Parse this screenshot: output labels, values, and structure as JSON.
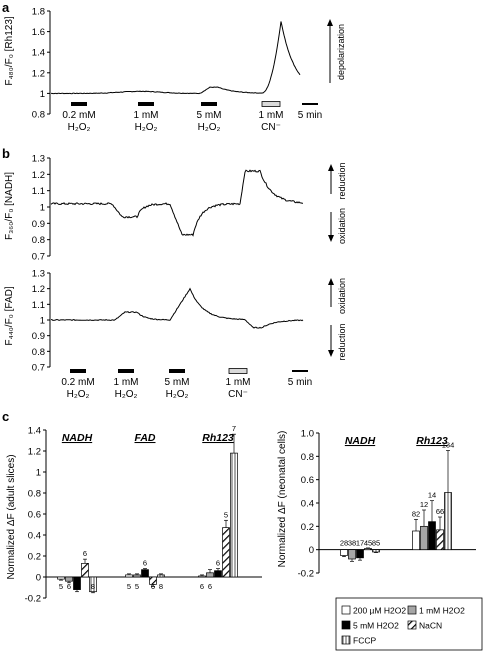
{
  "panel_labels": [
    "a",
    "b",
    "c"
  ],
  "panel_a": {
    "ylabel": "F₄₈₀/F₀ [Rh123]",
    "ylim": [
      0.8,
      1.8
    ],
    "yticks": [
      "0.8",
      "1",
      "1.2",
      "1.4",
      "1.6",
      "1.8"
    ],
    "arrow_label": "depolarization",
    "markers": [
      {
        "line1": "0.2 mM",
        "line2": "H₂O₂",
        "style": "black"
      },
      {
        "line1": "1 mM",
        "line2": "H₂O₂",
        "style": "black"
      },
      {
        "line1": "5 mM",
        "line2": "H₂O₂",
        "style": "black"
      },
      {
        "line1": "1 mM",
        "line2": "CN⁻",
        "style": "gray"
      }
    ],
    "scale_label": "5 min"
  },
  "panel_b_nadh": {
    "ylabel": "F₃₆₀/F₀ [NADH]",
    "ylim": [
      0.7,
      1.3
    ],
    "yticks": [
      "0.7",
      "0.8",
      "0.9",
      "1",
      "1.1",
      "1.2",
      "1.3"
    ],
    "arrow_up": "reduction",
    "arrow_down": "oxidation"
  },
  "panel_b_fad": {
    "ylabel": "F₄₄₀/F₀ [FAD]",
    "ylim": [
      0.7,
      1.3
    ],
    "yticks": [
      "0.7",
      "0.8",
      "0.9",
      "1",
      "1.1",
      "1.2",
      "1.3"
    ],
    "arrow_up": "oxidation",
    "arrow_down": "reduction",
    "markers": [
      {
        "line1": "0.2 mM",
        "line2": "H₂O₂",
        "style": "black"
      },
      {
        "line1": "1 mM",
        "line2": "H₂O₂",
        "style": "black"
      },
      {
        "line1": "5 mM",
        "line2": "H₂O₂",
        "style": "black"
      },
      {
        "line1": "1 mM",
        "line2": "CN⁻",
        "style": "gray"
      }
    ],
    "scale_label": "5 min"
  },
  "chart_data": [
    {
      "type": "bar",
      "ylabel": "Normalized ΔF  (adult slices)",
      "ylim": [
        -0.2,
        1.4
      ],
      "yticks": [
        "-0.2",
        "0",
        "0.2",
        "0.4",
        "0.6",
        "0.8",
        "1",
        "1.2",
        "1.4"
      ],
      "groups": [
        "NADH",
        "FAD",
        "Rh123"
      ],
      "series_order": [
        "200 µM H2O2",
        "1 mM H2O2",
        "5 mM H2O2",
        "NaCN",
        "FCCP"
      ],
      "bars": [
        {
          "group": "NADH",
          "series": "200 µM H2O2",
          "value": -0.02,
          "err": 0.01,
          "n": "5"
        },
        {
          "group": "NADH",
          "series": "1 mM H2O2",
          "value": -0.04,
          "err": 0.015,
          "n": "6"
        },
        {
          "group": "NADH",
          "series": "5 mM H2O2",
          "value": -0.12,
          "err": 0.02,
          "n": "6"
        },
        {
          "group": "NADH",
          "series": "NaCN",
          "value": 0.13,
          "err": 0.04,
          "n": "6"
        },
        {
          "group": "NADH",
          "series": "FCCP",
          "value": -0.14,
          "err": 0.01,
          "n": "8"
        },
        {
          "group": "FAD",
          "series": "200 µM H2O2",
          "value": 0.02,
          "err": 0.01,
          "n": "5"
        },
        {
          "group": "FAD",
          "series": "1 mM H2O2",
          "value": 0.02,
          "err": 0.01,
          "n": "5"
        },
        {
          "group": "FAD",
          "series": "5 mM H2O2",
          "value": 0.07,
          "err": 0.01,
          "n": "6"
        },
        {
          "group": "FAD",
          "series": "NaCN",
          "value": -0.07,
          "err": 0.02,
          "n": "6"
        },
        {
          "group": "FAD",
          "series": "FCCP",
          "value": 0.02,
          "err": 0.01,
          "n": "8"
        },
        {
          "group": "Rh123",
          "series": "200 µM H2O2",
          "value": 0.01,
          "err": 0.01,
          "n": "6"
        },
        {
          "group": "Rh123",
          "series": "1 mM H2O2",
          "value": 0.04,
          "err": 0.03,
          "n": "6"
        },
        {
          "group": "Rh123",
          "series": "5 mM H2O2",
          "value": 0.06,
          "err": 0.02,
          "n": "6"
        },
        {
          "group": "Rh123",
          "series": "NaCN",
          "value": 0.47,
          "err": 0.07,
          "n": "5"
        },
        {
          "group": "Rh123",
          "series": "FCCP",
          "value": 1.18,
          "err": 0.18,
          "n": "7"
        }
      ]
    },
    {
      "type": "bar",
      "ylabel": "Normalized ΔF  (neonatal cells)",
      "ylim": [
        -0.2,
        1.0
      ],
      "yticks": [
        "-0.2",
        "0",
        "0.2",
        "0.4",
        "0.6",
        "0.8",
        "1.0"
      ],
      "groups": [
        "NADH",
        "Rh123"
      ],
      "series_order": [
        "200 µM H2O2",
        "1 mM H2O2",
        "5 mM H2O2",
        "NaCN",
        "FCCP"
      ],
      "bars": [
        {
          "group": "NADH",
          "series": "200 µM H2O2",
          "value": -0.05,
          "err": 0.01,
          "n": "28"
        },
        {
          "group": "NADH",
          "series": "1 mM H2O2",
          "value": -0.08,
          "err": 0.02,
          "n": "38"
        },
        {
          "group": "NADH",
          "series": "5 mM H2O2",
          "value": -0.07,
          "err": 0.02,
          "n": "17"
        },
        {
          "group": "NADH",
          "series": "NaCN",
          "value": 0.01,
          "err": 0.005,
          "n": "45"
        },
        {
          "group": "NADH",
          "series": "FCCP",
          "value": -0.02,
          "err": 0.005,
          "n": "85"
        },
        {
          "group": "Rh123",
          "series": "200 µM H2O2",
          "value": 0.16,
          "err": 0.1,
          "n": "82"
        },
        {
          "group": "Rh123",
          "series": "1 mM H2O2",
          "value": 0.2,
          "err": 0.14,
          "n": "12"
        },
        {
          "group": "Rh123",
          "series": "5 mM H2O2",
          "value": 0.24,
          "err": 0.18,
          "n": "14"
        },
        {
          "group": "Rh123",
          "series": "NaCN",
          "value": 0.17,
          "err": 0.11,
          "n": "66"
        },
        {
          "group": "Rh123",
          "series": "FCCP",
          "value": 0.49,
          "err": 0.36,
          "n": "134"
        }
      ]
    }
  ],
  "legend": [
    {
      "label": "200 µM H2O2",
      "fill": "white"
    },
    {
      "label": "1 mM H2O2",
      "fill": "#a6a6a6"
    },
    {
      "label": "5 mM H2O2",
      "fill": "#000000"
    },
    {
      "label": "NaCN",
      "fill": "hatch"
    },
    {
      "label": "FCCP",
      "fill": "vstripe"
    }
  ]
}
